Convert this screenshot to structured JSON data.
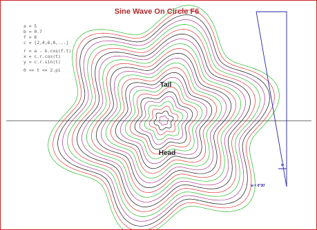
{
  "title": "Sine Wave On Circle F6",
  "equations": [
    "a = 5",
    "b = 0.7",
    "f = 6",
    "c = [2,4,6,8,...]",
    "r = a - b.cos(f.t)",
    "x = c.r.cos(t)",
    "y = c.r.sin(t)",
    "0 <= t <= 2.pi"
  ],
  "labels": {
    "tail": "Tail",
    "head": "Head",
    "angle_mark": "w",
    "angle_value": "w = 6°30'"
  },
  "colors": {
    "border": "#cc2222",
    "title": "#b02a2a",
    "axis": "#444444",
    "wedge": "#2222aa",
    "rings": [
      "#22bb22",
      "#dd3333",
      "#111111",
      "#aa3388"
    ]
  }
}
